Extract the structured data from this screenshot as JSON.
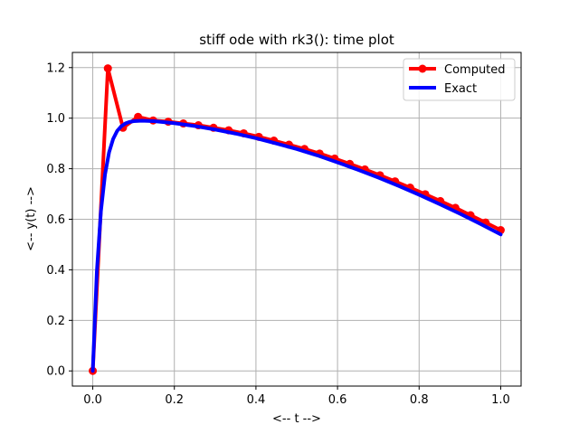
{
  "chart_data": {
    "type": "line",
    "title": "stiff ode with rk3(): time plot",
    "xlabel": "<-- t -->",
    "ylabel": "<-- y(t) -->",
    "xlim": [
      -0.05,
      1.05
    ],
    "ylim": [
      -0.06,
      1.26
    ],
    "xticks": [
      0.0,
      0.2,
      0.4,
      0.6,
      0.8,
      1.0
    ],
    "xtick_labels": [
      "0.0",
      "0.2",
      "0.4",
      "0.6",
      "0.8",
      "1.0"
    ],
    "yticks": [
      0.0,
      0.2,
      0.4,
      0.6,
      0.8,
      1.0,
      1.2
    ],
    "ytick_labels": [
      "0.0",
      "0.2",
      "0.4",
      "0.6",
      "0.8",
      "1.0",
      "1.2"
    ],
    "grid": true,
    "legend_position": "top-right",
    "series": [
      {
        "name": "Computed",
        "color": "#ff0000",
        "marker": "circle",
        "x": [
          0.0,
          0.037,
          0.074,
          0.111,
          0.148,
          0.185,
          0.222,
          0.259,
          0.296,
          0.333,
          0.37,
          0.407,
          0.444,
          0.481,
          0.519,
          0.556,
          0.593,
          0.63,
          0.667,
          0.704,
          0.741,
          0.778,
          0.815,
          0.852,
          0.889,
          0.926,
          0.963,
          1.0
        ],
        "y": [
          0.0,
          1.197,
          0.962,
          1.005,
          0.991,
          0.986,
          0.979,
          0.972,
          0.962,
          0.952,
          0.94,
          0.926,
          0.911,
          0.895,
          0.878,
          0.86,
          0.84,
          0.819,
          0.797,
          0.774,
          0.75,
          0.725,
          0.699,
          0.672,
          0.645,
          0.616,
          0.587,
          0.557
        ]
      },
      {
        "name": "Exact",
        "color": "#0000ff",
        "x": [
          0.0,
          0.01,
          0.02,
          0.03,
          0.04,
          0.05,
          0.06,
          0.07,
          0.08,
          0.09,
          0.1,
          0.12,
          0.15,
          0.2,
          0.25,
          0.3,
          0.35,
          0.4,
          0.45,
          0.5,
          0.55,
          0.6,
          0.65,
          0.7,
          0.75,
          0.8,
          0.85,
          0.9,
          0.95,
          1.0
        ],
        "y": [
          0.0,
          0.393,
          0.632,
          0.777,
          0.865,
          0.918,
          0.95,
          0.968,
          0.979,
          0.985,
          0.988,
          0.99,
          0.988,
          0.98,
          0.969,
          0.955,
          0.939,
          0.921,
          0.9,
          0.878,
          0.853,
          0.825,
          0.796,
          0.765,
          0.732,
          0.697,
          0.66,
          0.622,
          0.582,
          0.54
        ]
      }
    ]
  }
}
